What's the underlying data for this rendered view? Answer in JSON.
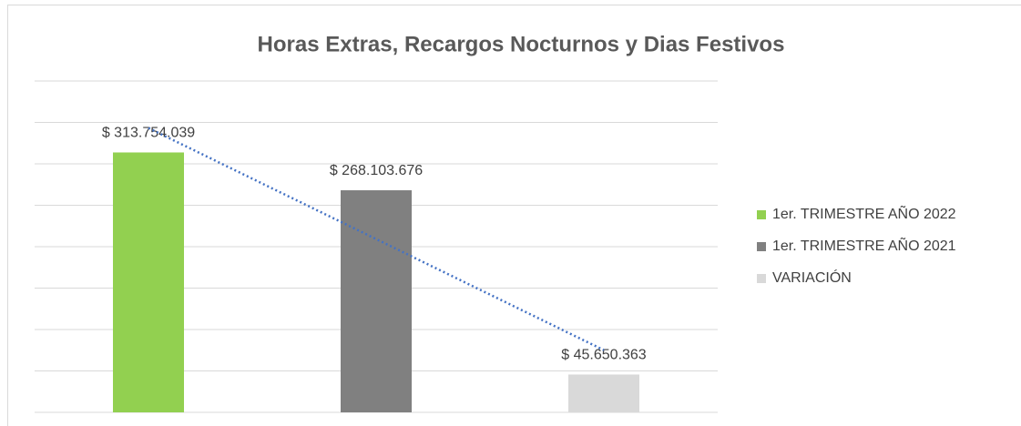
{
  "chart_data": {
    "type": "bar",
    "title": "Horas Extras, Recargos Nocturnos y Dias Festivos",
    "categories": [
      "1er. TRIMESTRE AÑO 2022",
      "1er. TRIMESTRE AÑO 2021",
      "VARIACIÓN"
    ],
    "values": [
      313754039,
      268103676,
      45650363
    ],
    "value_labels": [
      "$ 313.754.039",
      "$ 268.103.676",
      "$ 45.650.363"
    ],
    "colors": [
      "#92d050",
      "#808080",
      "#d9d9d9"
    ],
    "ylim": [
      0,
      400000000
    ],
    "yticks": [
      0,
      50000000,
      100000000,
      150000000,
      200000000,
      250000000,
      300000000,
      350000000,
      400000000
    ],
    "grid": true,
    "trendline": {
      "type": "linear",
      "color": "#4472c4"
    },
    "legend": "right"
  }
}
